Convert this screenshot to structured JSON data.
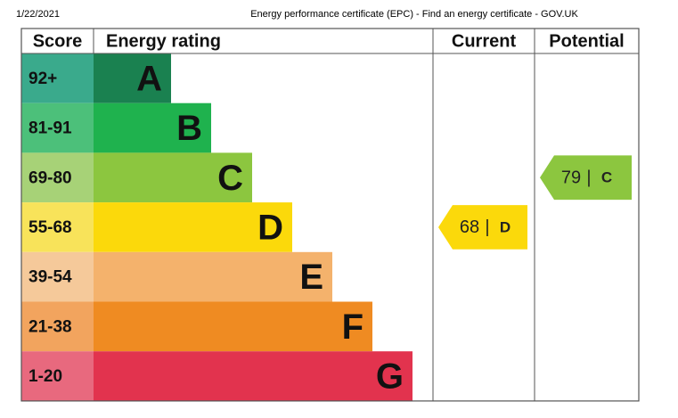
{
  "header": {
    "date": "1/22/2021",
    "title": "Energy performance certificate (EPC) - Find an energy certificate - GOV.UK"
  },
  "table": {
    "headers": [
      "Score",
      "Energy rating",
      "Current",
      "Potential"
    ],
    "bands": [
      {
        "score": "92+",
        "letter": "A",
        "color": "#1a8150",
        "tint": "#3aaa8c"
      },
      {
        "score": "81-91",
        "letter": "B",
        "color": "#1fb24e",
        "tint": "#4cc07a"
      },
      {
        "score": "69-80",
        "letter": "C",
        "color": "#8cc63f",
        "tint": "#a7d277"
      },
      {
        "score": "55-68",
        "letter": "D",
        "color": "#fbd90b",
        "tint": "#f8e35a"
      },
      {
        "score": "39-54",
        "letter": "E",
        "color": "#f4b26c",
        "tint": "#f5c99a"
      },
      {
        "score": "21-38",
        "letter": "F",
        "color": "#ef8b22",
        "tint": "#f2a45e"
      },
      {
        "score": "1-20",
        "letter": "G",
        "color": "#e2334e",
        "tint": "#e8697e"
      }
    ],
    "current": {
      "value": 68,
      "separator": "|",
      "letter": "D",
      "color": "#fbd90b"
    },
    "potential": {
      "value": 79,
      "separator": "|",
      "letter": "C",
      "color": "#8cc63f"
    }
  }
}
